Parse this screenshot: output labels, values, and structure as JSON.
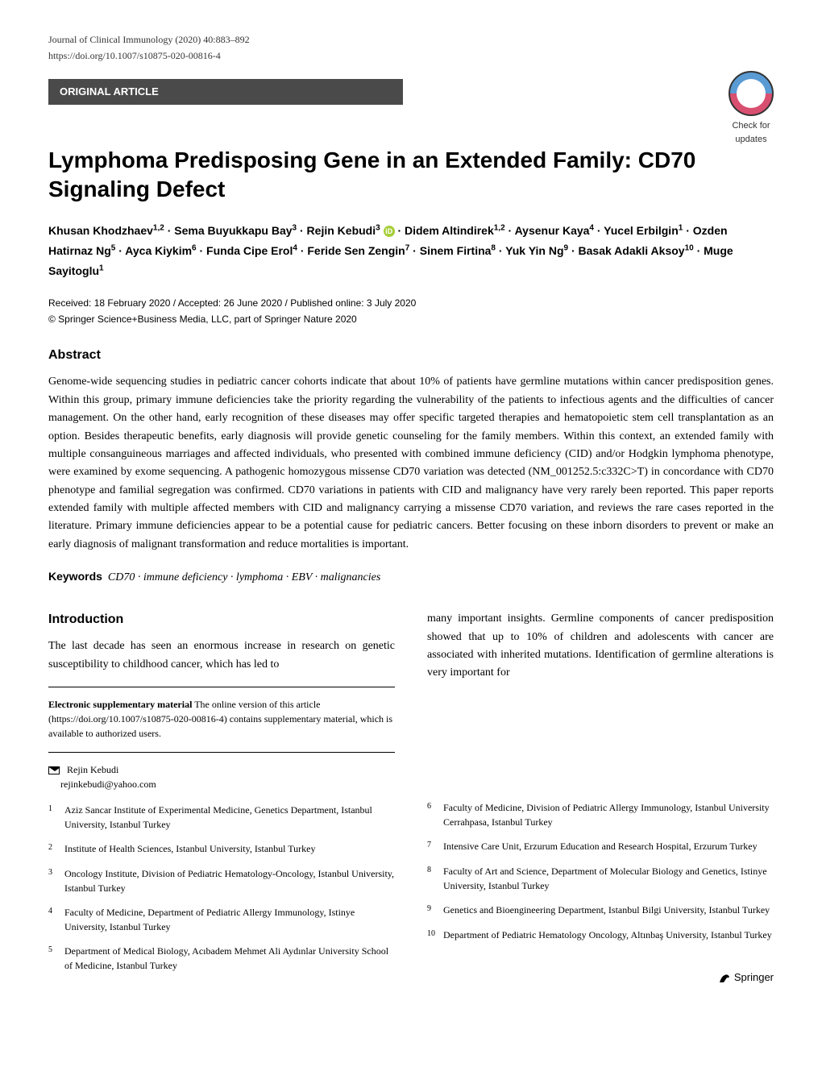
{
  "header": {
    "journal_line": "Journal of Clinical Immunology (2020) 40:883–892",
    "doi_line": "https://doi.org/10.1007/s10875-020-00816-4",
    "article_type": "ORIGINAL ARTICLE",
    "check_updates_label": "Check for",
    "check_updates_sub": "updates"
  },
  "title": "Lymphoma Predisposing Gene in an Extended Family: CD70 Signaling Defect",
  "authors_html": "Khusan Khodzhaev<sup>1,2</sup> · Sema Buyukkapu Bay<sup>3</sup> · Rejin Kebudi<sup>3</sup> <span class='orcid'>iD</span> · Didem Altindirek<sup>1,2</sup> · Aysenur Kaya<sup>4</sup> · Yucel Erbilgin<sup>1</sup> · Ozden Hatirnaz Ng<sup>5</sup> · Ayca Kiykim<sup>6</sup> · Funda Cipe Erol<sup>4</sup> · Feride Sen Zengin<sup>7</sup> · Sinem Firtina<sup>8</sup> · Yuk Yin Ng<sup>9</sup> · Basak Adakli Aksoy<sup>10</sup> · Muge Sayitoglu<sup>1</sup>",
  "dates": "Received: 18 February 2020 / Accepted: 26 June 2020 / Published online: 3 July 2020",
  "copyright": "© Springer Science+Business Media, LLC, part of Springer Nature 2020",
  "abstract": {
    "heading": "Abstract",
    "text": "Genome-wide sequencing studies in pediatric cancer cohorts indicate that about 10% of patients have germline mutations within cancer predisposition genes. Within this group, primary immune deficiencies take the priority regarding the vulnerability of the patients to infectious agents and the difficulties of cancer management. On the other hand, early recognition of these diseases may offer specific targeted therapies and hematopoietic stem cell transplantation as an option. Besides therapeutic benefits, early diagnosis will provide genetic counseling for the family members. Within this context, an extended family with multiple consanguineous marriages and affected individuals, who presented with combined immune deficiency (CID) and/or Hodgkin lymphoma phenotype, were examined by exome sequencing. A pathogenic homozygous missense CD70 variation was detected (NM_001252.5:c332C>T) in concordance with CD70 phenotype and familial segregation was confirmed. CD70 variations in patients with CID and malignancy have very rarely been reported. This paper reports extended family with multiple affected members with CID and malignancy carrying a missense CD70 variation, and reviews the rare cases reported in the literature. Primary immune deficiencies appear to be a potential cause for pediatric cancers. Better focusing on these inborn disorders to prevent or make an early diagnosis of malignant transformation and reduce mortalities is important."
  },
  "keywords": {
    "label": "Keywords",
    "text": "CD70 · immune deficiency · lymphoma · EBV · malignancies"
  },
  "introduction": {
    "heading": "Introduction",
    "left_text": "The last decade has seen an enormous increase in research on genetic susceptibility to childhood cancer, which has led to",
    "right_text": "many important insights. Germline components of cancer predisposition showed that up to 10% of children and adolescents with cancer are associated with inherited mutations. Identification of germline alterations is very important for"
  },
  "supplementary": {
    "label": "Electronic supplementary material",
    "text": " The online version of this article (https://doi.org/10.1007/s10875-020-00816-4) contains supplementary material, which is available to authorized users."
  },
  "corresponding": {
    "name": "Rejin Kebudi",
    "email": "rejinkebudi@yahoo.com"
  },
  "affiliations_left": [
    {
      "num": "1",
      "text": "Aziz Sancar Institute of Experimental Medicine, Genetics Department, Istanbul University, Istanbul Turkey"
    },
    {
      "num": "2",
      "text": "Institute of Health Sciences, Istanbul University, Istanbul Turkey"
    },
    {
      "num": "3",
      "text": "Oncology Institute, Division of Pediatric Hematology-Oncology, Istanbul University, Istanbul Turkey"
    },
    {
      "num": "4",
      "text": "Faculty of Medicine, Department of Pediatric Allergy Immunology, Istinye University, Istanbul Turkey"
    },
    {
      "num": "5",
      "text": "Department of Medical Biology, Acıbadem Mehmet Ali Aydınlar University School of Medicine, Istanbul Turkey"
    }
  ],
  "affiliations_right": [
    {
      "num": "6",
      "text": "Faculty of Medicine, Division of Pediatric Allergy Immunology, Istanbul University Cerrahpasa, Istanbul Turkey"
    },
    {
      "num": "7",
      "text": "Intensive Care Unit, Erzurum Education and Research Hospital, Erzurum Turkey"
    },
    {
      "num": "8",
      "text": "Faculty of Art and Science, Department of Molecular Biology and Genetics, Istinye University, Istanbul Turkey"
    },
    {
      "num": "9",
      "text": "Genetics and Bioengineering Department, Istanbul Bilgi University, Istanbul Turkey"
    },
    {
      "num": "10",
      "text": "Department of Pediatric Hematology Oncology, Altınbaş University, Istanbul Turkey"
    }
  ],
  "publisher": "Springer",
  "colors": {
    "bar_bg": "#4a4a4a",
    "bar_text": "#ffffff",
    "orcid_bg": "#a6ce39",
    "circle_top": "#5a9bd4",
    "circle_bottom": "#d94f70"
  }
}
